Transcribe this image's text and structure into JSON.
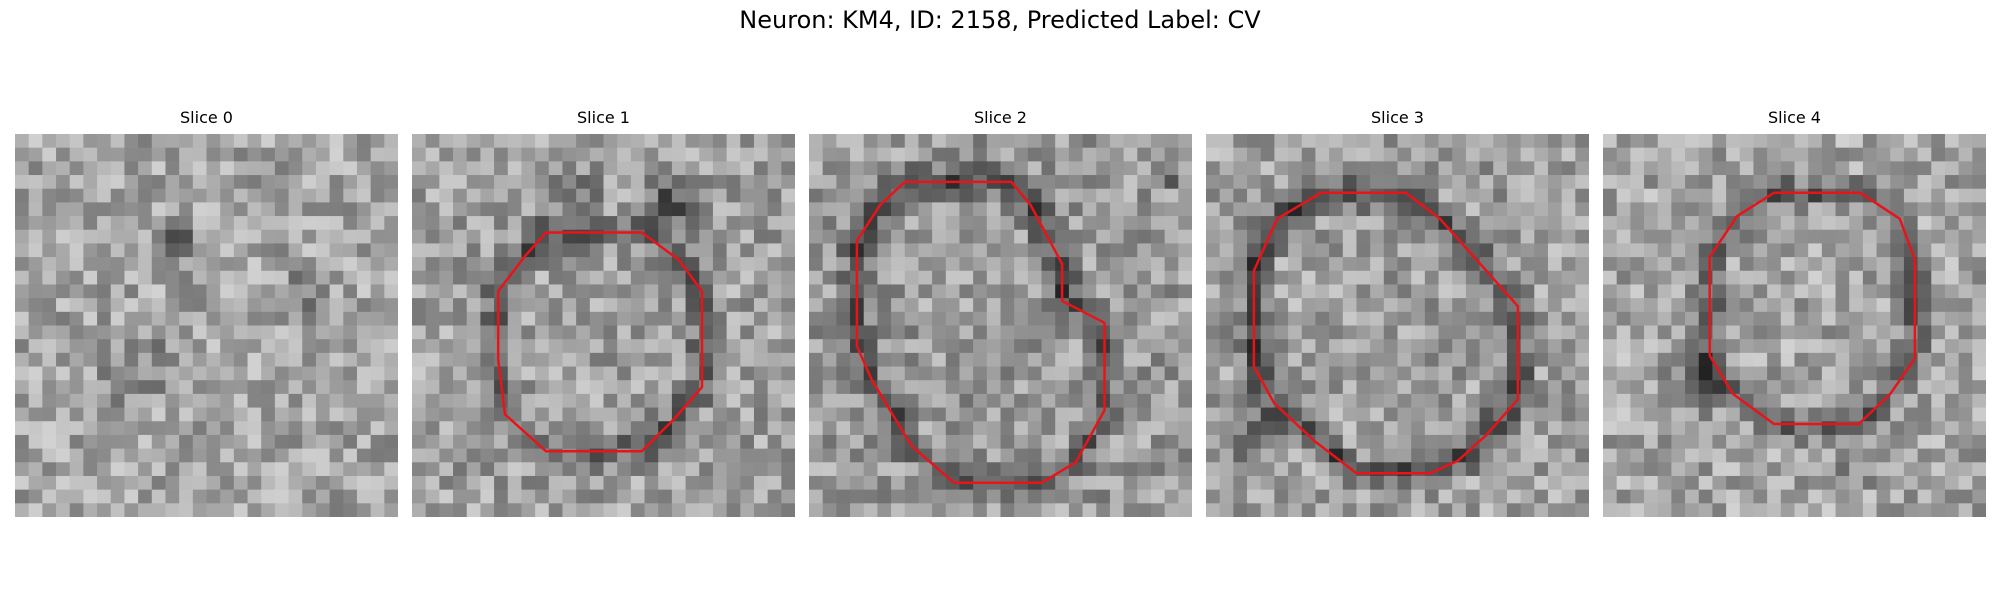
{
  "figure": {
    "title": "Neuron: KM4, ID: 2158, Predicted Label: CV"
  },
  "panels": [
    {
      "title": "Slice 0",
      "has_contour": false
    },
    {
      "title": "Slice 1",
      "has_contour": true
    },
    {
      "title": "Slice 2",
      "has_contour": true
    },
    {
      "title": "Slice 3",
      "has_contour": true
    },
    {
      "title": "Slice 4",
      "has_contour": true
    }
  ],
  "colors": {
    "contour": "#e8141a",
    "background": "#ffffff"
  }
}
